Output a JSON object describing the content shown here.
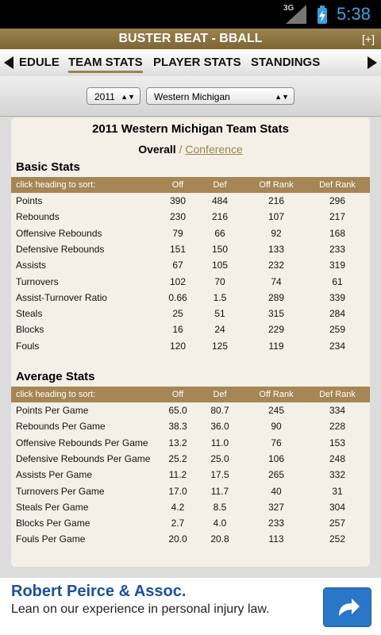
{
  "status_bar": {
    "network": "3G",
    "time": "5:38"
  },
  "header": {
    "title": "BUSTER BEAT - BBALL",
    "expand": "[+]"
  },
  "tabs": [
    "EDULE",
    "TEAM STATS",
    "PLAYER STATS",
    "STANDINGS"
  ],
  "selectors": {
    "year": "2011",
    "team": "Western Michigan"
  },
  "page": {
    "title": "2011 Western Michigan Team Stats",
    "view_active": "Overall",
    "view_separator": "/",
    "view_other": "Conference"
  },
  "sections": [
    {
      "title": "Basic Stats",
      "header": [
        "click heading to sort:",
        "Off",
        "Def",
        "Off Rank",
        "Def Rank"
      ],
      "rows": [
        [
          "Points",
          "390",
          "484",
          "216",
          "296"
        ],
        [
          "Rebounds",
          "230",
          "216",
          "107",
          "217"
        ],
        [
          "Offensive Rebounds",
          "79",
          "66",
          "92",
          "168"
        ],
        [
          "Defensive Rebounds",
          "151",
          "150",
          "133",
          "233"
        ],
        [
          "Assists",
          "67",
          "105",
          "232",
          "319"
        ],
        [
          "Turnovers",
          "102",
          "70",
          "74",
          "61"
        ],
        [
          "Assist-Turnover Ratio",
          "0.66",
          "1.5",
          "289",
          "339"
        ],
        [
          "Steals",
          "25",
          "51",
          "315",
          "284"
        ],
        [
          "Blocks",
          "16",
          "24",
          "229",
          "259"
        ],
        [
          "Fouls",
          "120",
          "125",
          "119",
          "234"
        ]
      ]
    },
    {
      "title": "Average Stats",
      "header": [
        "click heading to sort:",
        "Off",
        "Def",
        "Off Rank",
        "Def Rank"
      ],
      "rows": [
        [
          "Points Per Game",
          "65.0",
          "80.7",
          "245",
          "334"
        ],
        [
          "Rebounds Per Game",
          "38.3",
          "36.0",
          "90",
          "228"
        ],
        [
          "Offensive Rebounds Per Game",
          "13.2",
          "11.0",
          "76",
          "153"
        ],
        [
          "Defensive Rebounds Per Game",
          "25.2",
          "25.0",
          "106",
          "248"
        ],
        [
          "Assists Per Game",
          "11.2",
          "17.5",
          "265",
          "332"
        ],
        [
          "Turnovers Per Game",
          "17.0",
          "11.7",
          "40",
          "31"
        ],
        [
          "Steals Per Game",
          "4.2",
          "8.5",
          "327",
          "304"
        ],
        [
          "Blocks Per Game",
          "2.7",
          "4.0",
          "233",
          "257"
        ],
        [
          "Fouls Per Game",
          "20.0",
          "20.8",
          "113",
          "252"
        ]
      ]
    }
  ],
  "ad": {
    "title": "Robert Peirce & Assoc.",
    "text": "Lean on our experience in personal injury law."
  }
}
